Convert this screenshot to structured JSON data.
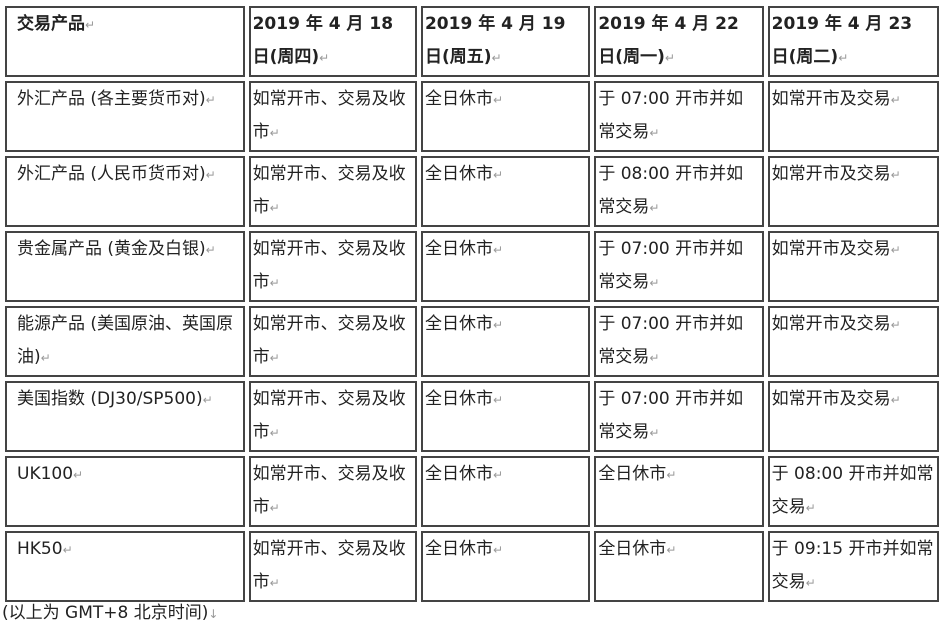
{
  "table": {
    "headers": [
      "交易产品",
      "2019 年 4 月 18 日(周四)",
      "2019 年 4 月 19 日(周五)",
      "2019 年 4 月 22 日(周一)",
      "2019 年 4 月 23 日(周二)"
    ],
    "rows": [
      [
        "外汇产品 (各主要货币对)",
        "如常开市、交易及收市",
        "全日休市",
        "于 07:00 开市并如常交易",
        "如常开市及交易"
      ],
      [
        "外汇产品 (人民币货币对)",
        "如常开市、交易及收市",
        "全日休市",
        "于 08:00 开市并如常交易",
        "如常开市及交易"
      ],
      [
        "贵金属产品 (黄金及白银)",
        "如常开市、交易及收市",
        "全日休市",
        "于 07:00 开市并如常交易",
        "如常开市及交易"
      ],
      [
        "能源产品 (美国原油、英国原油)",
        "如常开市、交易及收市",
        "全日休市",
        "于 07:00 开市并如常交易",
        "如常开市及交易"
      ],
      [
        "美国指数 (DJ30/SP500)",
        "如常开市、交易及收市",
        "全日休市",
        "于 07:00 开市并如常交易",
        "如常开市及交易"
      ],
      [
        "UK100",
        "如常开市、交易及收市",
        "全日休市",
        "全日休市",
        "于 08:00 开市并如常交易"
      ],
      [
        "HK50",
        "如常开市、交易及收市",
        "全日休市",
        "全日休市",
        "于 09:15 开市并如常交易"
      ]
    ]
  },
  "footer": "(以上为 GMT+8  北京时间)"
}
